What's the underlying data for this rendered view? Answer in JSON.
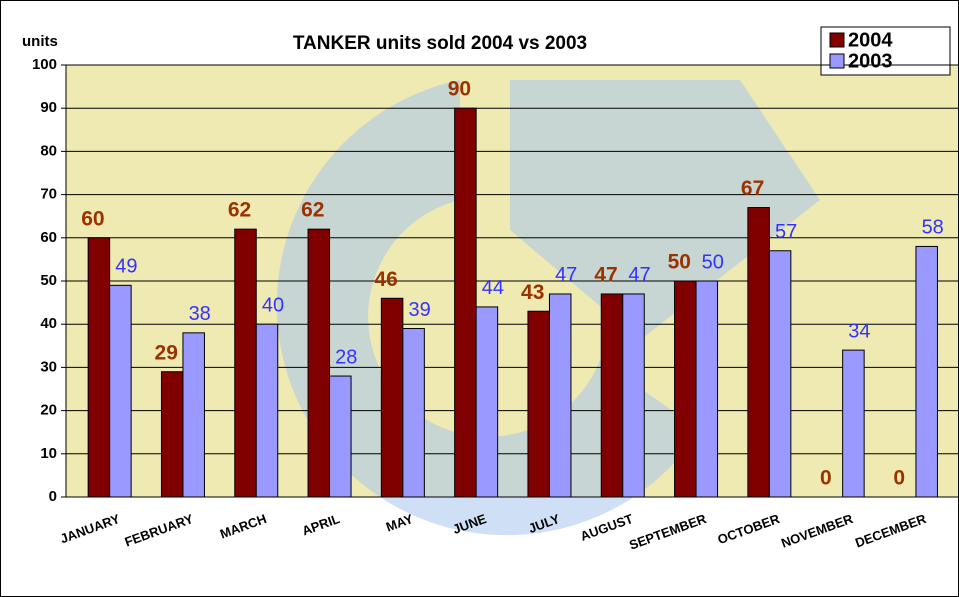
{
  "chart_data": {
    "type": "bar",
    "title": "TANKER units sold 2004 vs 2003",
    "y_label": "units",
    "categories": [
      "JANUARY",
      "FEBRUARY",
      "MARCH",
      "APRIL",
      "MAY",
      "JUNE",
      "JULY",
      "AUGUST",
      "SEPTEMBER",
      "OCTOBER",
      "NOVEMBER",
      "DECEMBER"
    ],
    "series": [
      {
        "name": "2004",
        "color": "#800000",
        "label_color": "#993300",
        "values": [
          60,
          29,
          62,
          62,
          46,
          90,
          43,
          47,
          50,
          67,
          0,
          0
        ]
      },
      {
        "name": "2003",
        "color": "#9999ff",
        "label_color": "#3333ff",
        "values": [
          49,
          38,
          40,
          28,
          39,
          44,
          47,
          47,
          50,
          57,
          34,
          58
        ]
      }
    ],
    "ylim": [
      0,
      100
    ],
    "yticks": [
      0,
      10,
      20,
      30,
      40,
      50,
      60,
      70,
      80,
      90,
      100
    ],
    "grid": true,
    "legend": "top-right"
  }
}
